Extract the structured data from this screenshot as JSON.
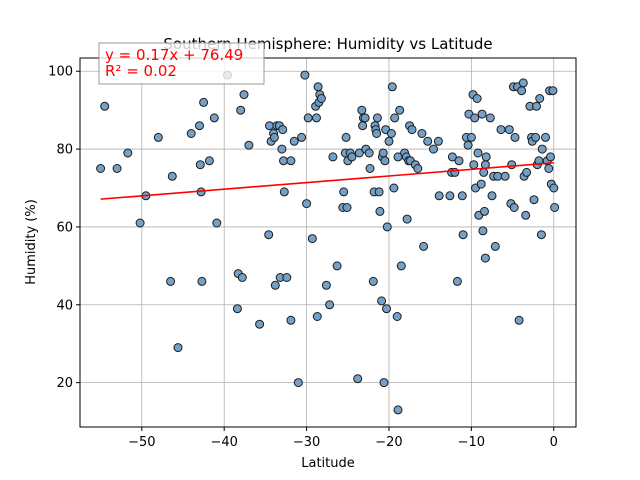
{
  "chart_data": {
    "type": "scatter",
    "title": "Southern Hemisphere: Humidity vs Latitude",
    "xlabel": "Latitude",
    "ylabel": "Humidity (%)",
    "xlim": [
      -57.5,
      2.7
    ],
    "ylim": [
      8.6,
      103.4
    ],
    "xticks": [
      -50,
      -40,
      -30,
      -20,
      -10,
      0
    ],
    "yticks": [
      20,
      40,
      60,
      80,
      100
    ],
    "xtick_labels": [
      "−50",
      "−40",
      "−30",
      "−20",
      "−10",
      "0"
    ],
    "ytick_labels": [
      "20",
      "40",
      "60",
      "80",
      "100"
    ],
    "grid": true,
    "regression": {
      "slope": 0.17,
      "intercept": 76.49,
      "x_range": [
        -55,
        0
      ]
    },
    "annotation": {
      "equation": "y = 0.17x + 76.49",
      "r_squared": "R² = 0.02"
    },
    "colors": {
      "marker_fill": "#6f9cc4",
      "marker_edge": "#1c1c1c",
      "regression_line": "#ff0000",
      "annotation_text": "#ff0000",
      "grid": "#b0b0b0"
    },
    "points": [
      [
        -55,
        75
      ],
      [
        -54.5,
        91
      ],
      [
        -53,
        75
      ],
      [
        -51.7,
        79
      ],
      [
        -50.2,
        61
      ],
      [
        -49.5,
        68
      ],
      [
        -48,
        83
      ],
      [
        -46.5,
        46
      ],
      [
        -46.3,
        73
      ],
      [
        -45.6,
        29
      ],
      [
        -44,
        84
      ],
      [
        -43,
        86
      ],
      [
        -42.9,
        76
      ],
      [
        -42.8,
        69
      ],
      [
        -42.7,
        46
      ],
      [
        -42.5,
        92
      ],
      [
        -41.8,
        77
      ],
      [
        -41.2,
        88
      ],
      [
        -40.9,
        61
      ],
      [
        -39.6,
        99
      ],
      [
        -38.4,
        39
      ],
      [
        -38.3,
        48
      ],
      [
        -38,
        90
      ],
      [
        -37.8,
        47
      ],
      [
        -37.6,
        94
      ],
      [
        -37,
        81
      ],
      [
        -35.7,
        35
      ],
      [
        -34.6,
        58
      ],
      [
        -34.5,
        86
      ],
      [
        -34.3,
        82
      ],
      [
        -34,
        84
      ],
      [
        -33.9,
        83
      ],
      [
        -33.8,
        45
      ],
      [
        -33.6,
        86
      ],
      [
        -33.3,
        86
      ],
      [
        -33.2,
        47
      ],
      [
        -33,
        80
      ],
      [
        -32.9,
        85
      ],
      [
        -32.8,
        77
      ],
      [
        -32.7,
        69
      ],
      [
        -32.4,
        47
      ],
      [
        -31.9,
        77
      ],
      [
        -31.9,
        36
      ],
      [
        -31.5,
        82
      ],
      [
        -31,
        20
      ],
      [
        -30.6,
        83
      ],
      [
        -30.2,
        99
      ],
      [
        -30,
        66
      ],
      [
        -29.8,
        88
      ],
      [
        -29.3,
        57
      ],
      [
        -28.9,
        91
      ],
      [
        -28.8,
        88
      ],
      [
        -28.7,
        37
      ],
      [
        -28.6,
        96
      ],
      [
        -28.5,
        92
      ],
      [
        -28.4,
        94
      ],
      [
        -28.2,
        93
      ],
      [
        -27.6,
        45
      ],
      [
        -27.2,
        40
      ],
      [
        -26.8,
        78
      ],
      [
        -26.3,
        50
      ],
      [
        -25.6,
        65
      ],
      [
        -25.5,
        69
      ],
      [
        -25.3,
        79
      ],
      [
        -25.2,
        83
      ],
      [
        -25.1,
        65
      ],
      [
        -25,
        77
      ],
      [
        -24.7,
        79
      ],
      [
        -24.5,
        78
      ],
      [
        -23.8,
        21
      ],
      [
        -23.6,
        79
      ],
      [
        -23.3,
        90
      ],
      [
        -23.2,
        86
      ],
      [
        -23.1,
        88
      ],
      [
        -22.9,
        88
      ],
      [
        -22.8,
        80
      ],
      [
        -22.4,
        79
      ],
      [
        -22.3,
        75
      ],
      [
        -21.9,
        46
      ],
      [
        -21.8,
        69
      ],
      [
        -21.7,
        86
      ],
      [
        -21.6,
        85
      ],
      [
        -21.5,
        84
      ],
      [
        -21.4,
        88
      ],
      [
        -21.2,
        69
      ],
      [
        -21.1,
        64
      ],
      [
        -20.9,
        41
      ],
      [
        -20.8,
        78
      ],
      [
        -20.7,
        79
      ],
      [
        -20.6,
        20
      ],
      [
        -20.5,
        77
      ],
      [
        -20.4,
        85
      ],
      [
        -20.3,
        39
      ],
      [
        -20.2,
        60
      ],
      [
        -20,
        82
      ],
      [
        -19.7,
        84
      ],
      [
        -19.6,
        96
      ],
      [
        -19.4,
        70
      ],
      [
        -19.3,
        88
      ],
      [
        -19,
        37
      ],
      [
        -18.9,
        78
      ],
      [
        -18.9,
        13
      ],
      [
        -18.7,
        90
      ],
      [
        -18.5,
        50
      ],
      [
        -18.1,
        79
      ],
      [
        -17.9,
        78
      ],
      [
        -17.8,
        62
      ],
      [
        -17.6,
        77
      ],
      [
        -17.5,
        86
      ],
      [
        -17.4,
        77
      ],
      [
        -17.2,
        85
      ],
      [
        -16.8,
        76
      ],
      [
        -16.5,
        75
      ],
      [
        -16,
        84
      ],
      [
        -15.8,
        55
      ],
      [
        -15.3,
        82
      ],
      [
        -14.6,
        80
      ],
      [
        -14,
        82
      ],
      [
        -13.9,
        68
      ],
      [
        -12.6,
        68
      ],
      [
        -12.4,
        74
      ],
      [
        -12.3,
        78
      ],
      [
        -12,
        74
      ],
      [
        -11.7,
        46
      ],
      [
        -11.5,
        77
      ],
      [
        -11.1,
        68
      ],
      [
        -11,
        58
      ],
      [
        -10.6,
        83
      ],
      [
        -10.4,
        81
      ],
      [
        -10.3,
        89
      ],
      [
        -10,
        83
      ],
      [
        -9.8,
        94
      ],
      [
        -9.7,
        76
      ],
      [
        -9.6,
        88
      ],
      [
        -9.5,
        70
      ],
      [
        -9.3,
        93
      ],
      [
        -9.2,
        79
      ],
      [
        -9.1,
        63
      ],
      [
        -8.8,
        71
      ],
      [
        -8.7,
        89
      ],
      [
        -8.6,
        59
      ],
      [
        -8.5,
        74
      ],
      [
        -8.4,
        64
      ],
      [
        -8.3,
        52
      ],
      [
        -8.3,
        76
      ],
      [
        -8.2,
        78
      ],
      [
        -7.7,
        88
      ],
      [
        -7.5,
        68
      ],
      [
        -7.3,
        73
      ],
      [
        -7.1,
        55
      ],
      [
        -6.8,
        73
      ],
      [
        -6.4,
        85
      ],
      [
        -5.9,
        73
      ],
      [
        -5.4,
        85
      ],
      [
        -5.2,
        66
      ],
      [
        -5.1,
        76
      ],
      [
        -4.9,
        96
      ],
      [
        -4.8,
        65
      ],
      [
        -4.7,
        83
      ],
      [
        -4.4,
        96
      ],
      [
        -4.2,
        36
      ],
      [
        -3.9,
        95
      ],
      [
        -3.7,
        97
      ],
      [
        -3.6,
        73
      ],
      [
        -3.4,
        63
      ],
      [
        -3.3,
        74
      ],
      [
        -2.9,
        91
      ],
      [
        -2.7,
        83
      ],
      [
        -2.6,
        82
      ],
      [
        -2.4,
        67
      ],
      [
        -2.2,
        83
      ],
      [
        -2.1,
        91
      ],
      [
        -2,
        76
      ],
      [
        -1.8,
        77
      ],
      [
        -1.7,
        93
      ],
      [
        -1.5,
        58
      ],
      [
        -1.4,
        80
      ],
      [
        -1,
        83
      ],
      [
        -0.8,
        77
      ],
      [
        -0.6,
        75
      ],
      [
        -0.5,
        95
      ],
      [
        -0.4,
        78
      ],
      [
        -0.3,
        71
      ],
      [
        -0.1,
        95
      ],
      [
        0,
        70
      ],
      [
        0.1,
        65
      ]
    ]
  }
}
